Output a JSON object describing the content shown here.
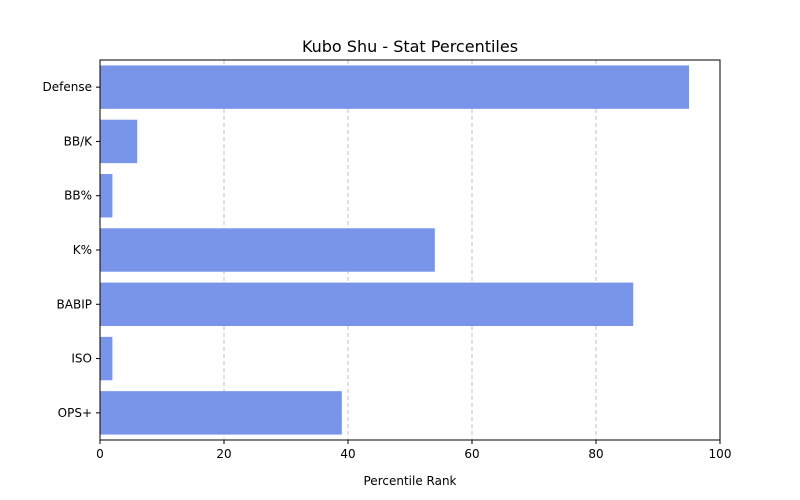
{
  "chart_data": {
    "type": "bar",
    "orientation": "horizontal",
    "title": "Kubo Shu - Stat Percentiles",
    "xlabel": "Percentile Rank",
    "ylabel": "",
    "categories": [
      "Defense",
      "BB/K",
      "BB%",
      "K%",
      "BABIP",
      "ISO",
      "OPS+"
    ],
    "values": [
      95,
      6,
      2,
      54,
      86,
      2,
      39
    ],
    "xlim": [
      0,
      100
    ],
    "xticks": [
      0,
      20,
      40,
      60,
      80,
      100
    ],
    "grid": "vertical dashed",
    "bar_color": "#7995e9"
  }
}
